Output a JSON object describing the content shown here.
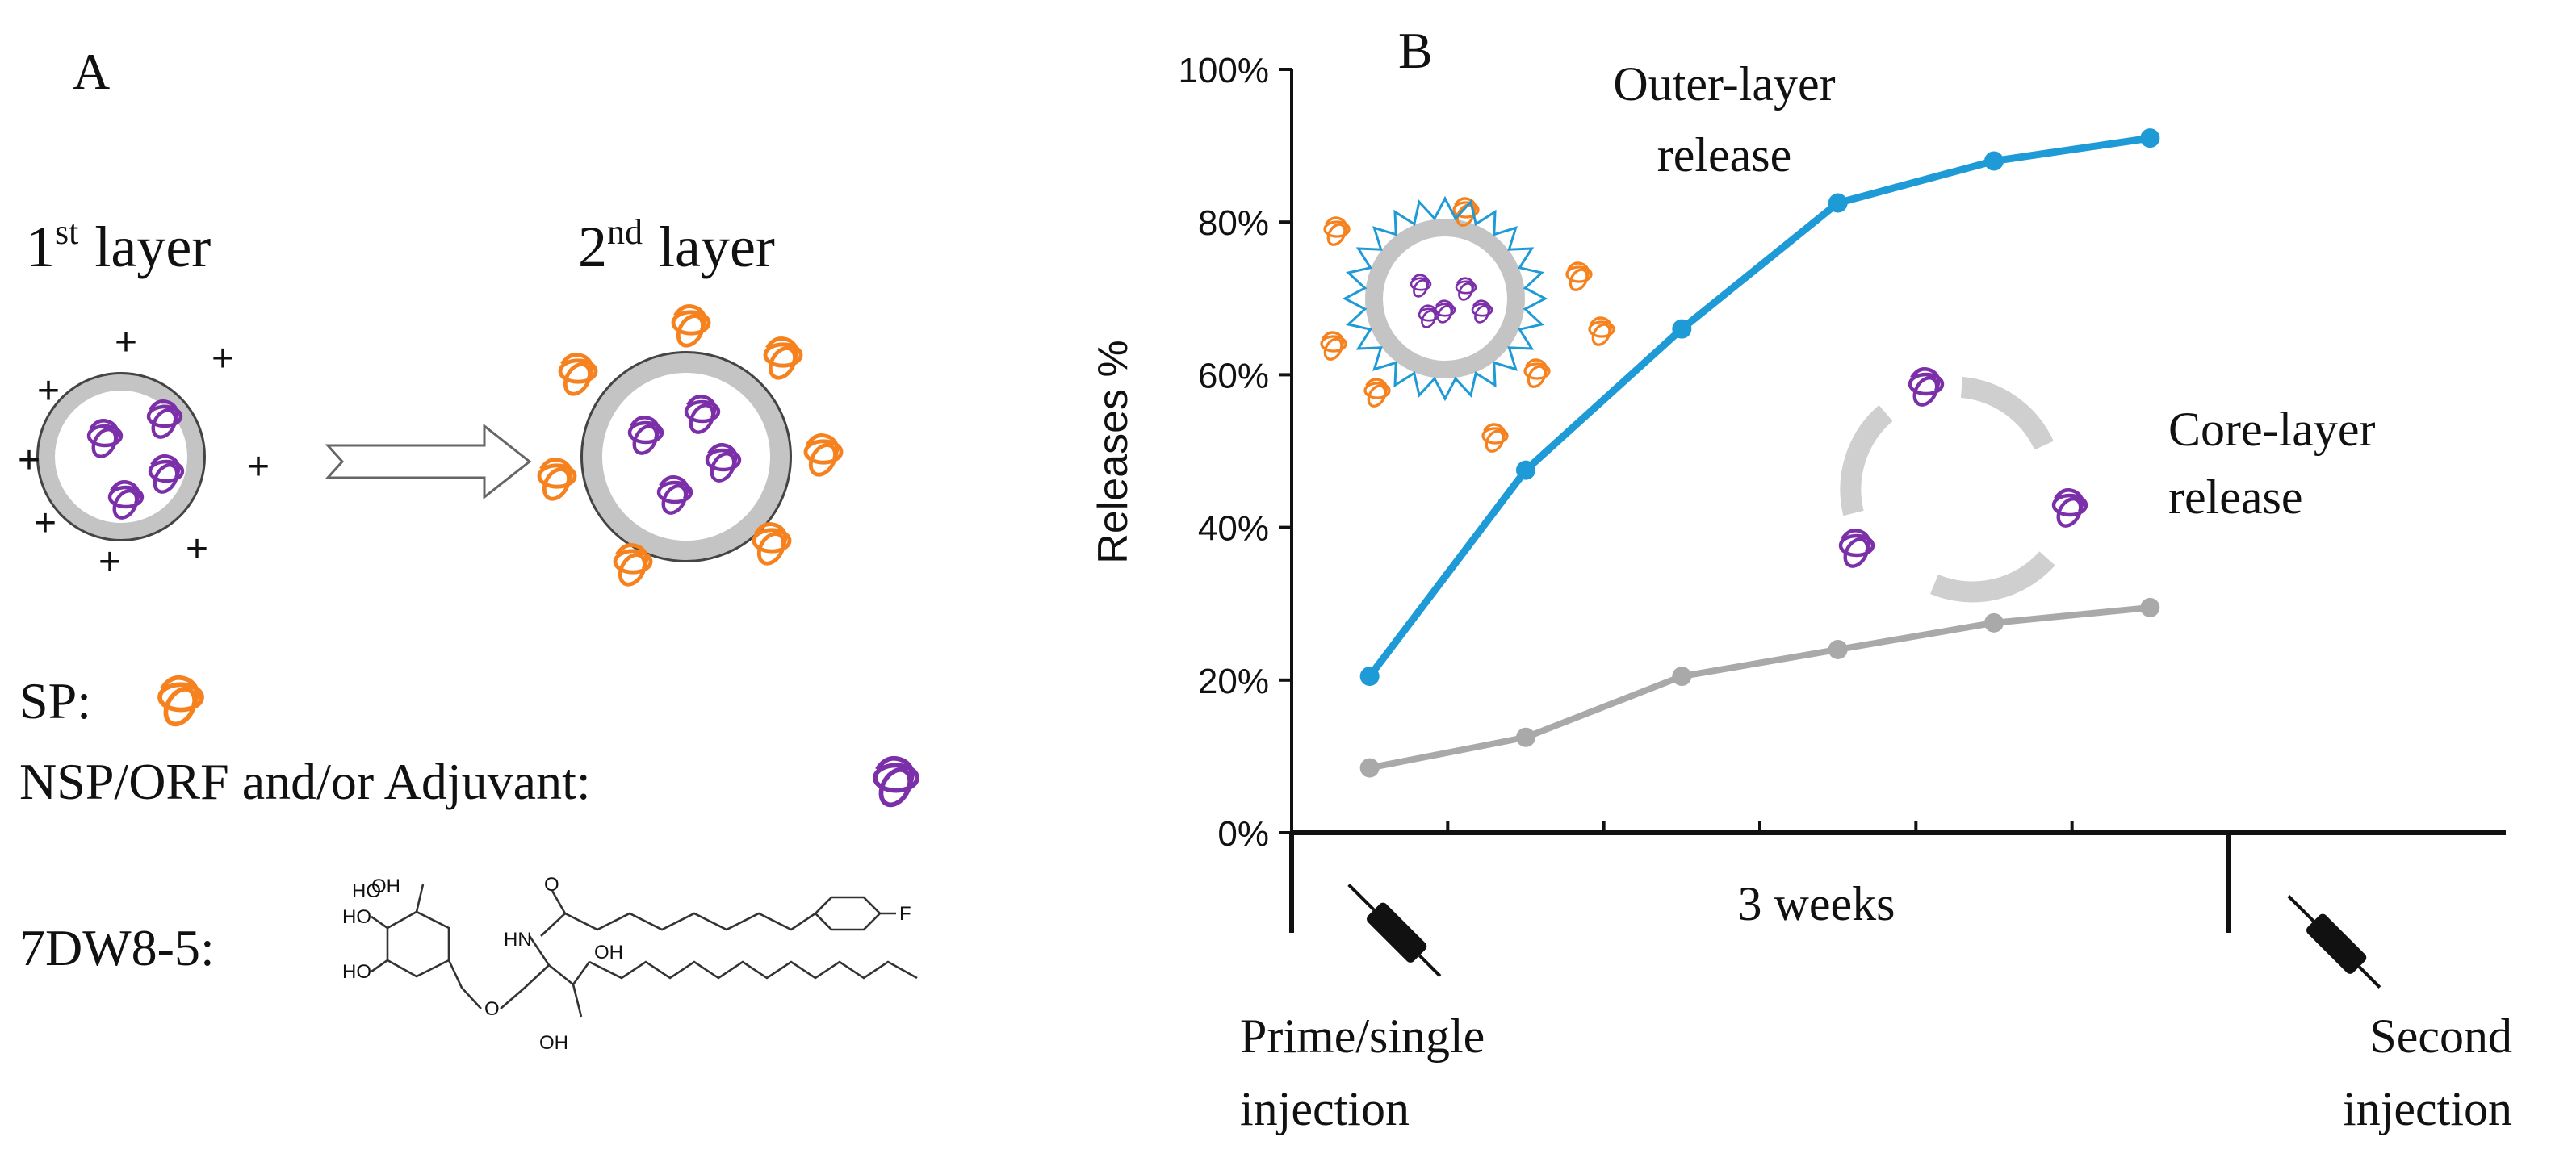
{
  "panel_a": {
    "label": "A",
    "first_layer": {
      "number": "1",
      "sup": "st",
      "text": "layer"
    },
    "second_layer": {
      "number": "2",
      "sup": "nd",
      "text": "layer"
    },
    "charges": [
      "+",
      "+",
      "+",
      "+",
      "+",
      "+",
      "+",
      "+"
    ],
    "sp_label": "SP:",
    "nsp_label": "NSP/ORF and/or Adjuvant:",
    "compound_label": "7DW8-5:",
    "structure_labels": [
      "OH",
      "HO",
      "HO",
      "HO",
      "O",
      "HN",
      "O",
      "OH",
      "OH",
      "F"
    ]
  },
  "chart_data": {
    "type": "line",
    "panel_label": "B",
    "ylabel": "Releases %",
    "categories": [
      null,
      null,
      null,
      null,
      null,
      null
    ],
    "series": [
      {
        "name": "Outer-layer release",
        "color": "#1e9ad6",
        "values": [
          20.5,
          47.5,
          66,
          82.5,
          88,
          91
        ]
      },
      {
        "name": "Core-layer release",
        "color": "#a9a9a9",
        "values": [
          8.5,
          12.5,
          20.5,
          24,
          27.5,
          29.5
        ]
      }
    ],
    "ylim": [
      0,
      100
    ],
    "yticks": [
      {
        "value": 0,
        "label": "0%"
      },
      {
        "value": 20,
        "label": "20%"
      },
      {
        "value": 40,
        "label": "40%"
      },
      {
        "value": 60,
        "label": "60%"
      },
      {
        "value": 80,
        "label": "80%"
      },
      {
        "value": 100,
        "label": "100%"
      }
    ],
    "annotations": {
      "outer": [
        "Outer-layer",
        "release"
      ],
      "core": [
        "Core-layer",
        "release"
      ],
      "duration": "3 weeks",
      "prime": [
        "Prime/single",
        "injection"
      ],
      "second": [
        "Second",
        "injection"
      ]
    }
  }
}
